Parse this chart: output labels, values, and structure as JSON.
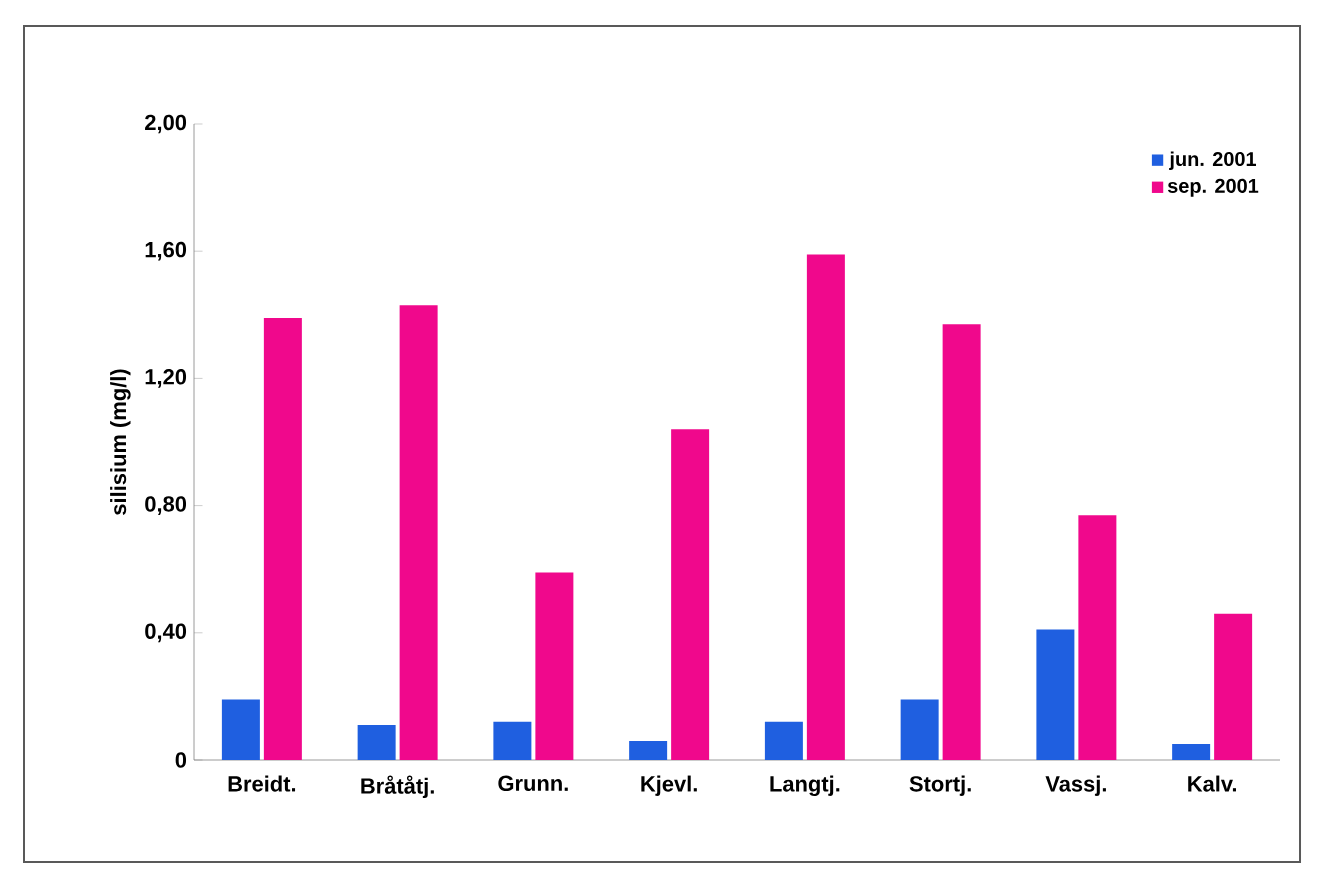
{
  "chart_data": {
    "type": "bar",
    "ylabel": "silisium (mg/l)",
    "categories": [
      "Breidt.",
      "Bråtåtj.",
      "Grunn.",
      "Kjevl.",
      "Langtj.",
      "Stortj.",
      "Vassj.",
      "Kalv."
    ],
    "series": [
      {
        "name": "jun. 2001",
        "color": "#1f5fe0",
        "values": [
          0.19,
          0.11,
          0.12,
          0.06,
          0.12,
          0.19,
          0.41,
          0.05
        ]
      },
      {
        "name": "sep. 2001",
        "color": "#f0088c",
        "values": [
          1.39,
          1.43,
          0.59,
          1.04,
          1.59,
          1.37,
          0.77,
          0.46
        ]
      }
    ],
    "ylim": [
      0,
      2
    ],
    "yticks": [
      0,
      {
        "value": 0.4,
        "label": "0,40"
      },
      {
        "value": 0.8,
        "label": "0,80"
      },
      {
        "value": 1.2,
        "label": "1,20"
      },
      {
        "value": 1.6,
        "label": "1,60"
      },
      {
        "value": 2,
        "label": "2,00"
      }
    ],
    "grid": false,
    "legend": "top right"
  }
}
